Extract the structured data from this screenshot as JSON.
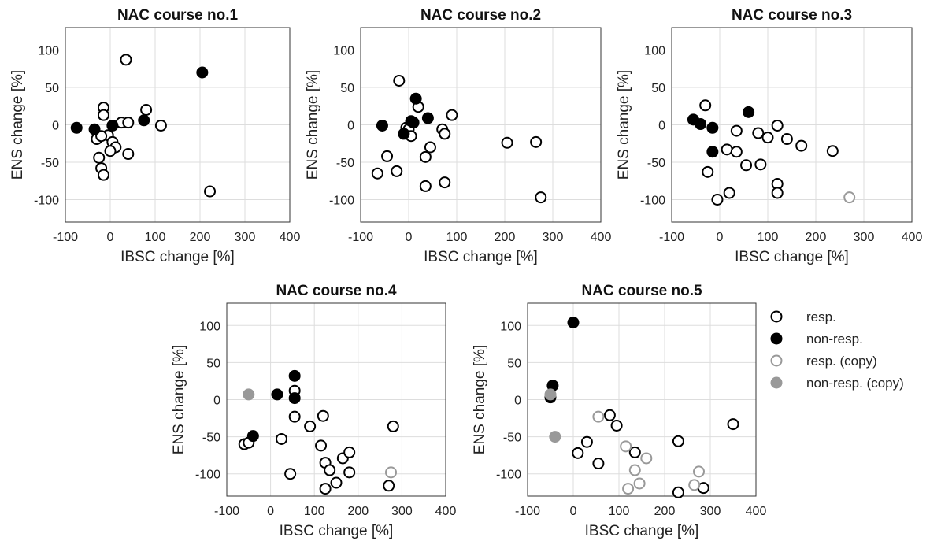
{
  "chart_data": [
    {
      "type": "scatter",
      "title": "NAC course no.1",
      "xlabel": "IBSC change [%]",
      "ylabel": "ENS change [%]",
      "xlim": [
        -100,
        400
      ],
      "ylim": [
        -130,
        130
      ],
      "xticks": [
        -100,
        0,
        100,
        200,
        300,
        400
      ],
      "yticks": [
        -100,
        -50,
        0,
        50,
        100
      ],
      "grid": true,
      "series": [
        {
          "name": "resp.",
          "points": [
            [
              35,
              87
            ],
            [
              -15,
              23
            ],
            [
              -15,
              13
            ],
            [
              80,
              20
            ],
            [
              25,
              3
            ],
            [
              40,
              3
            ],
            [
              113,
              -1
            ],
            [
              -5,
              -14
            ],
            [
              -30,
              -19
            ],
            [
              5,
              -23
            ],
            [
              12,
              -30
            ],
            [
              -20,
              -15
            ],
            [
              0,
              -35
            ],
            [
              40,
              -39
            ],
            [
              -25,
              -44
            ],
            [
              -20,
              -58
            ],
            [
              -15,
              -67
            ],
            [
              222,
              -89
            ]
          ]
        },
        {
          "name": "non-resp.",
          "points": [
            [
              -75,
              -4
            ],
            [
              -35,
              -6
            ],
            [
              5,
              -1
            ],
            [
              75,
              6
            ],
            [
              205,
              70
            ]
          ]
        }
      ]
    },
    {
      "type": "scatter",
      "title": "NAC course no.2",
      "xlabel": "IBSC change [%]",
      "ylabel": "ENS change [%]",
      "xlim": [
        -100,
        400
      ],
      "ylim": [
        -130,
        130
      ],
      "xticks": [
        -100,
        0,
        100,
        200,
        300,
        400
      ],
      "yticks": [
        -100,
        -50,
        0,
        50,
        100
      ],
      "grid": true,
      "series": [
        {
          "name": "resp.",
          "points": [
            [
              -20,
              59
            ],
            [
              20,
              24
            ],
            [
              90,
              13
            ],
            [
              -5,
              -4
            ],
            [
              0,
              -6
            ],
            [
              70,
              -6
            ],
            [
              75,
              -12
            ],
            [
              5,
              -15
            ],
            [
              -45,
              -42
            ],
            [
              45,
              -30
            ],
            [
              35,
              -43
            ],
            [
              -65,
              -65
            ],
            [
              -25,
              -62
            ],
            [
              35,
              -82
            ],
            [
              75,
              -77
            ],
            [
              205,
              -24
            ],
            [
              265,
              -23
            ],
            [
              275,
              -97
            ]
          ]
        },
        {
          "name": "non-resp.",
          "points": [
            [
              15,
              35
            ],
            [
              -55,
              -1
            ],
            [
              5,
              5
            ],
            [
              10,
              3
            ],
            [
              40,
              9
            ],
            [
              -10,
              -12
            ]
          ]
        }
      ]
    },
    {
      "type": "scatter",
      "title": "NAC course no.3",
      "xlabel": "IBSC change [%]",
      "ylabel": "ENS change [%]",
      "xlim": [
        -100,
        400
      ],
      "ylim": [
        -130,
        130
      ],
      "xticks": [
        -100,
        0,
        100,
        200,
        300,
        400
      ],
      "yticks": [
        -100,
        -50,
        0,
        50,
        100
      ],
      "grid": true,
      "series": [
        {
          "name": "resp.",
          "points": [
            [
              -30,
              26
            ],
            [
              35,
              -8
            ],
            [
              120,
              -1
            ],
            [
              80,
              -11
            ],
            [
              100,
              -17
            ],
            [
              140,
              -19
            ],
            [
              170,
              -28
            ],
            [
              15,
              -33
            ],
            [
              35,
              -36
            ],
            [
              235,
              -35
            ],
            [
              -25,
              -63
            ],
            [
              55,
              -54
            ],
            [
              85,
              -53
            ],
            [
              20,
              -91
            ],
            [
              -5,
              -100
            ],
            [
              120,
              -79
            ],
            [
              120,
              -91
            ]
          ]
        },
        {
          "name": "non-resp.",
          "points": [
            [
              -55,
              7
            ],
            [
              -40,
              1
            ],
            [
              -15,
              -4
            ],
            [
              60,
              17
            ],
            [
              -15,
              -36
            ]
          ]
        },
        {
          "name": "resp. (copy)",
          "points": [
            [
              270,
              -97
            ]
          ]
        }
      ]
    },
    {
      "type": "scatter",
      "title": "NAC course no.4",
      "xlabel": "IBSC change [%]",
      "ylabel": "ENS change [%]",
      "xlim": [
        -100,
        400
      ],
      "ylim": [
        -130,
        130
      ],
      "xticks": [
        -100,
        0,
        100,
        200,
        300,
        400
      ],
      "yticks": [
        -100,
        -50,
        0,
        50,
        100
      ],
      "grid": true,
      "series": [
        {
          "name": "resp.",
          "points": [
            [
              55,
              12
            ],
            [
              55,
              -23
            ],
            [
              120,
              -22
            ],
            [
              90,
              -36
            ],
            [
              280,
              -36
            ],
            [
              25,
              -53
            ],
            [
              -60,
              -60
            ],
            [
              -50,
              -58
            ],
            [
              115,
              -62
            ],
            [
              165,
              -79
            ],
            [
              180,
              -71
            ],
            [
              125,
              -85
            ],
            [
              135,
              -95
            ],
            [
              180,
              -98
            ],
            [
              45,
              -100
            ],
            [
              150,
              -112
            ],
            [
              270,
              -116
            ],
            [
              125,
              -120
            ]
          ]
        },
        {
          "name": "non-resp.",
          "points": [
            [
              55,
              32
            ],
            [
              15,
              7
            ],
            [
              55,
              2
            ],
            [
              -40,
              -49
            ]
          ]
        },
        {
          "name": "resp. (copy)",
          "points": [
            [
              275,
              -98
            ]
          ]
        },
        {
          "name": "non-resp. (copy)",
          "points": [
            [
              -50,
              7
            ]
          ]
        }
      ]
    },
    {
      "type": "scatter",
      "title": "NAC course no.5",
      "xlabel": "IBSC change [%]",
      "ylabel": "ENS change [%]",
      "xlim": [
        -100,
        400
      ],
      "ylim": [
        -130,
        130
      ],
      "xticks": [
        -100,
        0,
        100,
        200,
        300,
        400
      ],
      "yticks": [
        -100,
        -50,
        0,
        50,
        100
      ],
      "grid": true,
      "series": [
        {
          "name": "resp.",
          "points": [
            [
              80,
              -21
            ],
            [
              95,
              -35
            ],
            [
              30,
              -57
            ],
            [
              10,
              -72
            ],
            [
              55,
              -86
            ],
            [
              135,
              -71
            ],
            [
              230,
              -56
            ],
            [
              350,
              -33
            ],
            [
              285,
              -119
            ],
            [
              230,
              -125
            ]
          ]
        },
        {
          "name": "non-resp.",
          "points": [
            [
              0,
              104
            ],
            [
              -45,
              19
            ],
            [
              -50,
              3
            ]
          ]
        },
        {
          "name": "resp. (copy)",
          "points": [
            [
              55,
              -23
            ],
            [
              115,
              -63
            ],
            [
              160,
              -79
            ],
            [
              135,
              -95
            ],
            [
              275,
              -97
            ],
            [
              145,
              -113
            ],
            [
              265,
              -115
            ],
            [
              120,
              -120
            ]
          ]
        },
        {
          "name": "non-resp. (copy)",
          "points": [
            [
              -40,
              -50
            ],
            [
              -50,
              7
            ]
          ]
        }
      ]
    }
  ],
  "legend": {
    "placement": "right",
    "entries": [
      {
        "label": "resp.",
        "style": "open",
        "color": "#000000"
      },
      {
        "label": "non-resp.",
        "style": "filled",
        "color": "#000000"
      },
      {
        "label": "resp. (copy)",
        "style": "open",
        "color": "#999999"
      },
      {
        "label": "non-resp. (copy)",
        "style": "filled",
        "color": "#999999"
      }
    ]
  },
  "colors": {
    "resp.": "#000000",
    "non-resp.": "#000000",
    "resp. (copy)": "#999999",
    "non-resp. (copy)": "#999999",
    "grid": "#dddddd",
    "axis": "#333333"
  }
}
